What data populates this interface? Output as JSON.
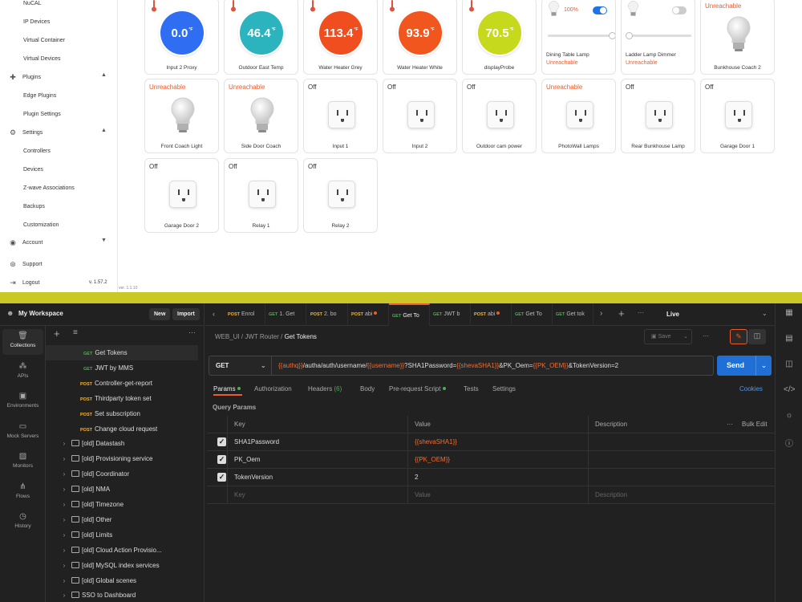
{
  "sidebar": {
    "items": [
      {
        "label": "NuCAL",
        "kind": "sub"
      },
      {
        "label": "IP Devices",
        "kind": "sub"
      },
      {
        "label": "Virtual Container",
        "kind": "sub"
      },
      {
        "label": "Virtual Devices",
        "kind": "sub"
      },
      {
        "label": "Plugins",
        "kind": "section",
        "icon": "puzzle-icon"
      },
      {
        "label": "Edge Plugins",
        "kind": "sub"
      },
      {
        "label": "Plugin Settings",
        "kind": "sub"
      },
      {
        "label": "Settings",
        "kind": "section",
        "icon": "gear-icon"
      },
      {
        "label": "Controllers",
        "kind": "sub"
      },
      {
        "label": "Devices",
        "kind": "sub"
      },
      {
        "label": "Z-wave Associations",
        "kind": "sub"
      },
      {
        "label": "Backups",
        "kind": "sub"
      },
      {
        "label": "Customization",
        "kind": "sub"
      },
      {
        "label": "Account",
        "kind": "section",
        "icon": "account-icon"
      },
      {
        "label": "Support",
        "kind": "section",
        "icon": "support-icon"
      },
      {
        "label": "Logout",
        "kind": "section",
        "icon": "logout-icon"
      }
    ],
    "logout_version": "v. 1.57.2",
    "app_version": "ver. 1.1.10"
  },
  "devices": [
    {
      "type": "thermo",
      "name": "Input 2 Proxy",
      "value": "0.0",
      "unit": "°F",
      "color": "#2f6ef2"
    },
    {
      "type": "thermo",
      "name": "Outdoor East Temp",
      "value": "46.4",
      "unit": "°F",
      "color": "#2bb3be"
    },
    {
      "type": "thermo",
      "name": "Water Heater Grey",
      "value": "113.4",
      "unit": "°F",
      "color": "#f04e1e"
    },
    {
      "type": "thermo",
      "name": "Water Heater White",
      "value": "93.9",
      "unit": "°F",
      "color": "#f2561f"
    },
    {
      "type": "thermo",
      "name": "displayProbe",
      "value": "70.5",
      "unit": "°F",
      "color": "#c7d91c"
    },
    {
      "type": "lamp",
      "name": "Dining Table Lamp",
      "pct": "100%",
      "on": true,
      "level": 1.0,
      "status": "Unreachable"
    },
    {
      "type": "lamp",
      "name": "Ladder Lamp Dimmer",
      "pct": "",
      "on": false,
      "level": 0.0,
      "status": "Unreachable"
    },
    {
      "type": "bulb",
      "name": "Bunkhouse Coach 2",
      "status": "Unreachable"
    },
    {
      "type": "bulb",
      "name": "Front Coach Light",
      "status": "Unreachable"
    },
    {
      "type": "bulb",
      "name": "Side Door Coach",
      "status": "Unreachable"
    },
    {
      "type": "outlet",
      "name": "Input 1",
      "status": "Off"
    },
    {
      "type": "outlet",
      "name": "Input 2",
      "status": "Off"
    },
    {
      "type": "outlet",
      "name": "Outdoor cam power",
      "status": "Off"
    },
    {
      "type": "outlet",
      "name": "PhotoWall Lamps",
      "status": "Unreachable"
    },
    {
      "type": "outlet",
      "name": "Rear Bunkhouse Lamp",
      "status": "Off"
    },
    {
      "type": "outlet",
      "name": "Garage Door 1",
      "status": "Off"
    },
    {
      "type": "outlet",
      "name": "Garage Door 2",
      "status": "Off"
    },
    {
      "type": "outlet",
      "name": "Relay 1",
      "status": "Off"
    },
    {
      "type": "outlet",
      "name": "Relay 2",
      "status": "Off"
    }
  ],
  "postman": {
    "workspace": "My Workspace",
    "new_label": "New",
    "import_label": "Import",
    "rail": [
      {
        "label": "Collections",
        "icon": "collections-icon",
        "active": true
      },
      {
        "label": "APIs",
        "icon": "apis-icon"
      },
      {
        "label": "Environments",
        "icon": "environments-icon"
      },
      {
        "label": "Mock Servers",
        "icon": "mock-servers-icon"
      },
      {
        "label": "Monitors",
        "icon": "monitors-icon"
      },
      {
        "label": "Flows",
        "icon": "flows-icon"
      },
      {
        "label": "History",
        "icon": "history-icon"
      }
    ],
    "tree": [
      {
        "kind": "req",
        "method": "GET",
        "label": "Get Tokens",
        "selected": true
      },
      {
        "kind": "req",
        "method": "GET",
        "label": "JWT by MMS"
      },
      {
        "kind": "req",
        "method": "POST",
        "label": "Controller-get-report"
      },
      {
        "kind": "req",
        "method": "POST",
        "label": "Thirdparty token set"
      },
      {
        "kind": "req",
        "method": "POST",
        "label": "Set subscription"
      },
      {
        "kind": "req",
        "method": "POST",
        "label": "Change cloud request"
      },
      {
        "kind": "folder",
        "label": "[old] Datastash"
      },
      {
        "kind": "folder",
        "label": "[old] Provisioning service"
      },
      {
        "kind": "folder",
        "label": "[old] Coordinator"
      },
      {
        "kind": "folder",
        "label": "[old] NMA"
      },
      {
        "kind": "folder",
        "label": "[old] Timezone"
      },
      {
        "kind": "folder",
        "label": "[old] Other"
      },
      {
        "kind": "folder",
        "label": "[old] Limits"
      },
      {
        "kind": "folder",
        "label": "[old] Cloud Action Provisio..."
      },
      {
        "kind": "folder",
        "label": "[old] MySQL index services"
      },
      {
        "kind": "folder",
        "label": "[old] Global scenes"
      },
      {
        "kind": "folder",
        "label": "SSO to Dashboard"
      }
    ],
    "tabs": [
      {
        "method": "POST",
        "label": "Enrol"
      },
      {
        "method": "GET",
        "label": "1. Get"
      },
      {
        "method": "POST",
        "label": "2. bo"
      },
      {
        "method": "POST",
        "label": "abi",
        "dot": true
      },
      {
        "method": "GET",
        "label": "Get To",
        "active": true
      },
      {
        "method": "GET",
        "label": "JWT b"
      },
      {
        "method": "POST",
        "label": "abi",
        "dot": true
      },
      {
        "method": "GET",
        "label": "Get To"
      },
      {
        "method": "GET",
        "label": "Get tok"
      }
    ],
    "environment": "Live",
    "breadcrumb": {
      "a": "WEB_UI",
      "b": "JWT Router",
      "c": "Get Tokens"
    },
    "save_label": "Save",
    "method": "GET",
    "url_parts": [
      {
        "t": "{{authq}}",
        "v": true
      },
      {
        "t": "/autha/auth/username/",
        "v": false
      },
      {
        "t": "{{username}}",
        "v": true
      },
      {
        "t": "?SHA1Password=",
        "v": false
      },
      {
        "t": "{{shevaSHA1}}",
        "v": true
      },
      {
        "t": "&PK_Oem=",
        "v": false
      },
      {
        "t": "{{PK_OEM}}",
        "v": true
      },
      {
        "t": "&TokenVersion=2",
        "v": false
      }
    ],
    "send_label": "Send",
    "subtabs": {
      "params": "Params",
      "auth": "Authorization",
      "headers": "Headers",
      "headers_count": "(6)",
      "body": "Body",
      "prereq": "Pre-request Script",
      "tests": "Tests",
      "settings": "Settings",
      "cookies": "Cookies"
    },
    "query_params_label": "Query Params",
    "table_headers": {
      "key": "Key",
      "value": "Value",
      "description": "Description",
      "bulk": "Bulk Edit"
    },
    "params": [
      {
        "key": "SHA1Password",
        "value": "{{shevaSHA1}}",
        "var": true
      },
      {
        "key": "PK_Oem",
        "value": "{{PK_OEM}}",
        "var": true
      },
      {
        "key": "TokenVersion",
        "value": "2",
        "var": false
      }
    ],
    "placeholder": {
      "key": "Key",
      "value": "Value",
      "description": "Description"
    }
  }
}
